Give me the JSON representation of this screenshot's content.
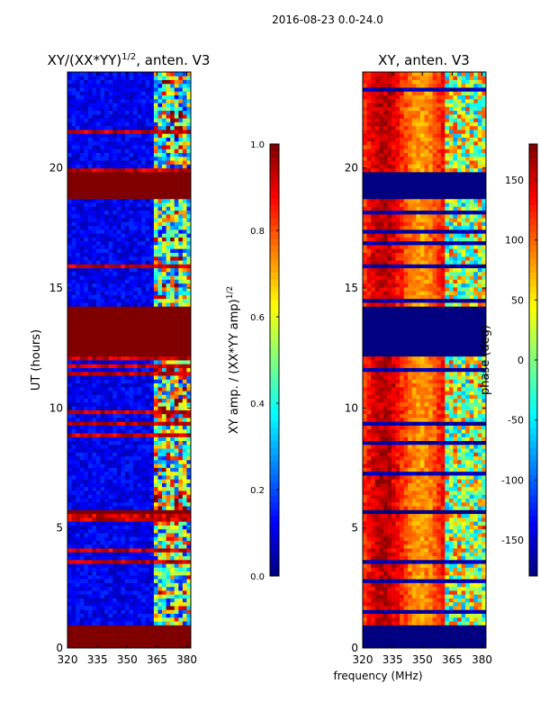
{
  "suptitle": "2016-08-23 0.0-24.0",
  "shared_xlabel": "frequency (MHz)",
  "chart_data": [
    {
      "type": "heatmap",
      "title_main": "XY/(XX*YY)",
      "title_sup": "1/2",
      "title_tail": ", anten. V3",
      "ylabel": "UT (hours)",
      "xlim": [
        320,
        382
      ],
      "ylim": [
        0,
        24
      ],
      "xticks": [
        320,
        335,
        350,
        365,
        380
      ],
      "yticks": [
        0,
        5,
        10,
        15,
        20
      ],
      "colormap": "jet",
      "background_value": 0.05,
      "flagged_value": 1.0,
      "flagged_bands_hours": [
        [
          0,
          0.95
        ],
        [
          5.55,
          5.7
        ],
        [
          12.1,
          14.2
        ],
        [
          18.7,
          19.8
        ]
      ],
      "colorbar": {
        "label_main": "XY amp. / (XX*YY amp)",
        "label_sup": "1/2",
        "range": [
          0.0,
          1.0
        ],
        "ticks": [
          "0.0",
          "0.2",
          "0.4",
          "0.6",
          "0.8",
          "1.0"
        ]
      }
    },
    {
      "type": "heatmap",
      "title": "XY, anten. V3",
      "xlim": [
        320,
        382
      ],
      "ylim": [
        0,
        24
      ],
      "xticks": [
        320,
        335,
        350,
        365,
        380
      ],
      "yticks": [
        0,
        5,
        10,
        15,
        20
      ],
      "colormap": "jet",
      "flagged_value": -180,
      "flagged_bands_hours": [
        [
          0,
          0.95
        ],
        [
          5.55,
          5.7
        ],
        [
          12.1,
          14.2
        ],
        [
          18.7,
          19.8
        ]
      ],
      "colorbar": {
        "label": "phase (deg)",
        "range": [
          -180,
          180
        ],
        "ticks": [
          "-150",
          "-100",
          "-50",
          "0",
          "50",
          "100",
          "150"
        ]
      }
    }
  ]
}
